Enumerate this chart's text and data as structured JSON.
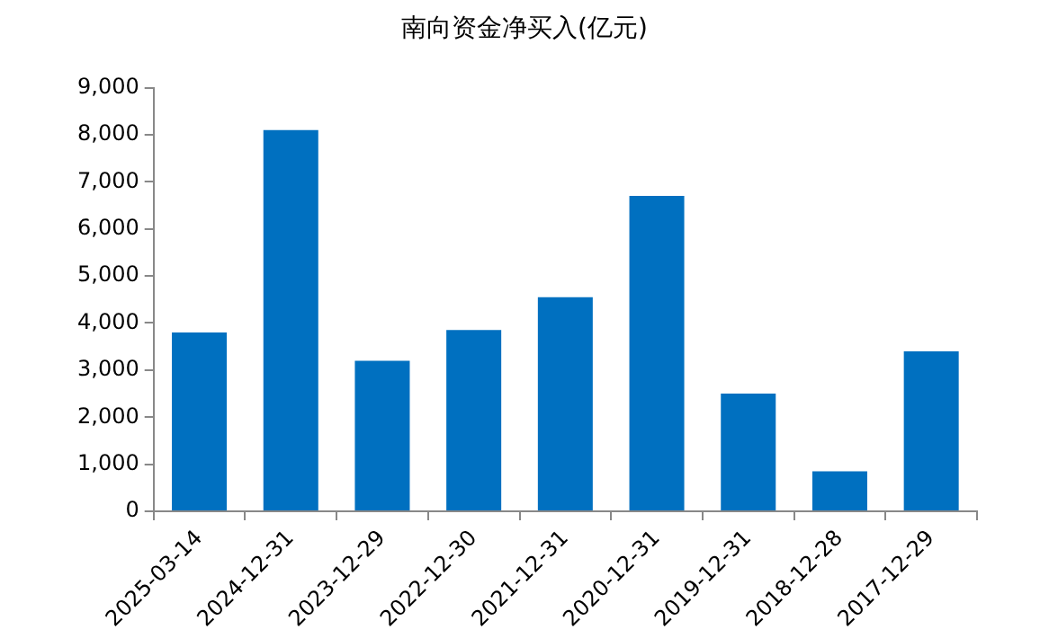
{
  "chart_data": {
    "type": "bar",
    "title": "南向资金净买入(亿元)",
    "categories": [
      "2025-03-14",
      "2024-12-31",
      "2023-12-29",
      "2022-12-30",
      "2021-12-31",
      "2020-12-31",
      "2019-12-31",
      "2018-12-28",
      "2017-12-29"
    ],
    "values": [
      3800,
      8100,
      3200,
      3850,
      4550,
      6700,
      2500,
      850,
      3400
    ],
    "color": "#0070c0",
    "ylim": [
      0,
      9000
    ],
    "yticks": [
      {
        "value": 0,
        "label": "0"
      },
      {
        "value": 1000,
        "label": "1,000"
      },
      {
        "value": 2000,
        "label": "2,000"
      },
      {
        "value": 3000,
        "label": "3,000"
      },
      {
        "value": 4000,
        "label": "4,000"
      },
      {
        "value": 5000,
        "label": "5,000"
      },
      {
        "value": 6000,
        "label": "6,000"
      },
      {
        "value": 7000,
        "label": "7,000"
      },
      {
        "value": 8000,
        "label": "8,000"
      },
      {
        "value": 9000,
        "label": "9,000"
      }
    ],
    "grid": false,
    "legend": false
  }
}
